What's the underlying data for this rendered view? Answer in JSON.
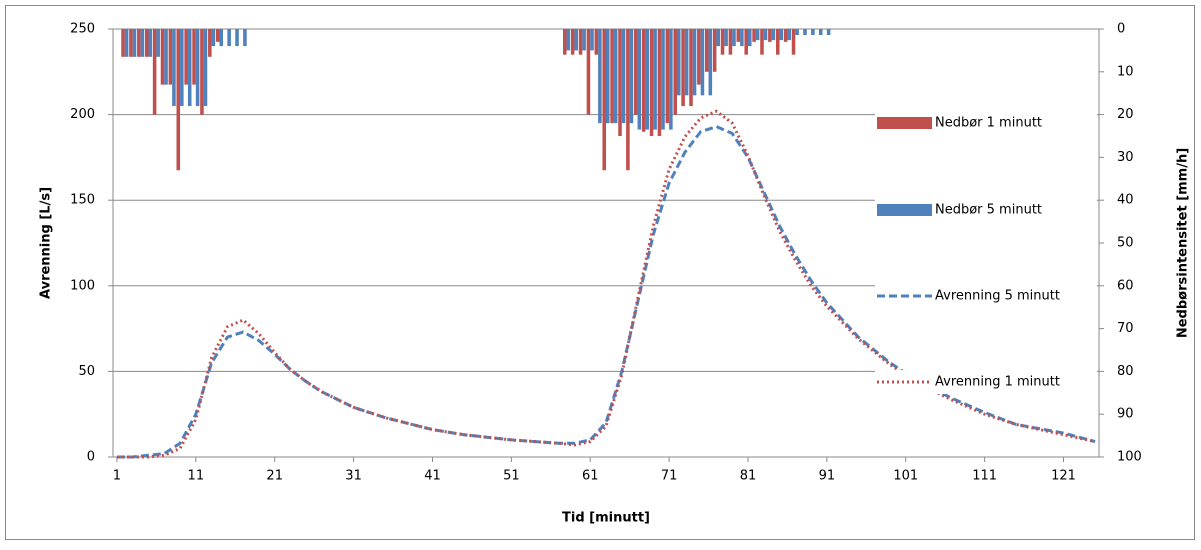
{
  "chart_data": {
    "type": "combo",
    "x_label": "Tid [minutt]",
    "y_label": "Avrenning [L/s]",
    "y2_label": "Nedbørsintensitet [mm/h]",
    "xlim": [
      0.5,
      125.5
    ],
    "xticks": [
      1,
      11,
      21,
      31,
      41,
      51,
      61,
      71,
      81,
      91,
      101,
      111,
      121
    ],
    "ylim": [
      0,
      250
    ],
    "yticks": [
      0,
      50,
      100,
      150,
      200,
      250
    ],
    "y2lim": [
      0,
      100
    ],
    "y2ticks": [
      0,
      10,
      20,
      30,
      40,
      50,
      60,
      70,
      80,
      90,
      100
    ],
    "y2_inverted": true,
    "grid": true,
    "legend": "right",
    "series": [
      {
        "name": "Nedbør 1 minutt",
        "type": "bar",
        "axis": "y2",
        "color": "#c0504d",
        "x": [
          2,
          3,
          4,
          5,
          6,
          7,
          8,
          9,
          10,
          11,
          12,
          13,
          14,
          58,
          59,
          60,
          61,
          62,
          63,
          64,
          65,
          66,
          67,
          68,
          69,
          70,
          71,
          72,
          73,
          74,
          75,
          76,
          77,
          78,
          79,
          80,
          81,
          82,
          83,
          84,
          85,
          86,
          87
        ],
        "values": [
          6.5,
          6.5,
          6.5,
          6.5,
          20,
          13,
          13,
          33,
          13,
          13,
          20,
          6.5,
          3,
          6,
          6,
          6,
          20,
          6,
          33,
          22,
          25,
          33,
          20,
          24,
          25,
          25,
          22,
          20,
          18,
          18,
          13,
          10,
          10,
          6,
          6,
          3,
          6,
          3,
          6,
          3,
          6,
          3,
          6
        ]
      },
      {
        "name": "Nedbør 5 minutt",
        "type": "bar",
        "axis": "y2",
        "color": "#4f81bd",
        "x": [
          2,
          3,
          4,
          5,
          6,
          7,
          8,
          9,
          10,
          11,
          12,
          13,
          14,
          15,
          16,
          17,
          58,
          59,
          60,
          61,
          62,
          63,
          64,
          65,
          66,
          67,
          68,
          69,
          70,
          71,
          72,
          73,
          74,
          75,
          76,
          77,
          78,
          79,
          80,
          81,
          82,
          83,
          84,
          85,
          86,
          87,
          88,
          89,
          90,
          91
        ],
        "values": [
          6.5,
          6.5,
          6.5,
          6.5,
          6.5,
          13,
          18,
          18,
          18,
          18,
          18,
          4,
          4,
          4,
          4,
          4,
          5,
          5,
          5,
          5,
          22,
          22,
          22,
          22,
          22,
          23.5,
          23.5,
          23.5,
          23.5,
          23.5,
          15.5,
          15.5,
          15.5,
          15.5,
          15.5,
          4,
          4,
          4,
          4,
          4,
          2.6,
          2.6,
          2.6,
          2.6,
          2.6,
          1.4,
          1.4,
          1.4,
          1.4,
          1.4
        ]
      },
      {
        "name": "Avrenning 5 minutt",
        "type": "line",
        "dash": "dashed",
        "color": "#4f81bd",
        "x": [
          1,
          3,
          5,
          7,
          9,
          11,
          13,
          15,
          17,
          19,
          21,
          23,
          25,
          27,
          31,
          35,
          41,
          45,
          51,
          57,
          59,
          61,
          63,
          65,
          67,
          69,
          71,
          73,
          75,
          77,
          79,
          81,
          83,
          85,
          87,
          89,
          91,
          95,
          99,
          103,
          107,
          111,
          115,
          121,
          125
        ],
        "values": [
          0,
          0,
          1,
          2,
          8,
          25,
          55,
          70,
          73,
          68,
          60,
          51,
          44,
          38,
          29,
          23,
          16,
          13,
          10,
          8,
          8,
          10,
          20,
          50,
          90,
          130,
          160,
          178,
          190,
          193,
          189,
          175,
          155,
          135,
          118,
          103,
          90,
          70,
          55,
          43,
          34,
          26,
          19,
          14,
          9
        ]
      },
      {
        "name": "Avrenning 1 minutt",
        "type": "line",
        "dash": "dotted",
        "color": "#c0504d",
        "x": [
          1,
          3,
          5,
          7,
          9,
          11,
          13,
          15,
          17,
          19,
          21,
          23,
          25,
          27,
          31,
          35,
          41,
          45,
          51,
          57,
          59,
          61,
          63,
          65,
          67,
          69,
          71,
          73,
          75,
          77,
          79,
          81,
          83,
          85,
          87,
          89,
          91,
          95,
          99,
          103,
          107,
          111,
          115,
          121,
          125
        ],
        "values": [
          0,
          0,
          0,
          1,
          5,
          22,
          58,
          76,
          80,
          72,
          61,
          51,
          44,
          38,
          29,
          23,
          16,
          13,
          10,
          8,
          7,
          9,
          18,
          48,
          92,
          135,
          168,
          187,
          198,
          202,
          195,
          176,
          153,
          132,
          115,
          100,
          88,
          69,
          54,
          42,
          33,
          25,
          19,
          13,
          9
        ]
      }
    ]
  }
}
